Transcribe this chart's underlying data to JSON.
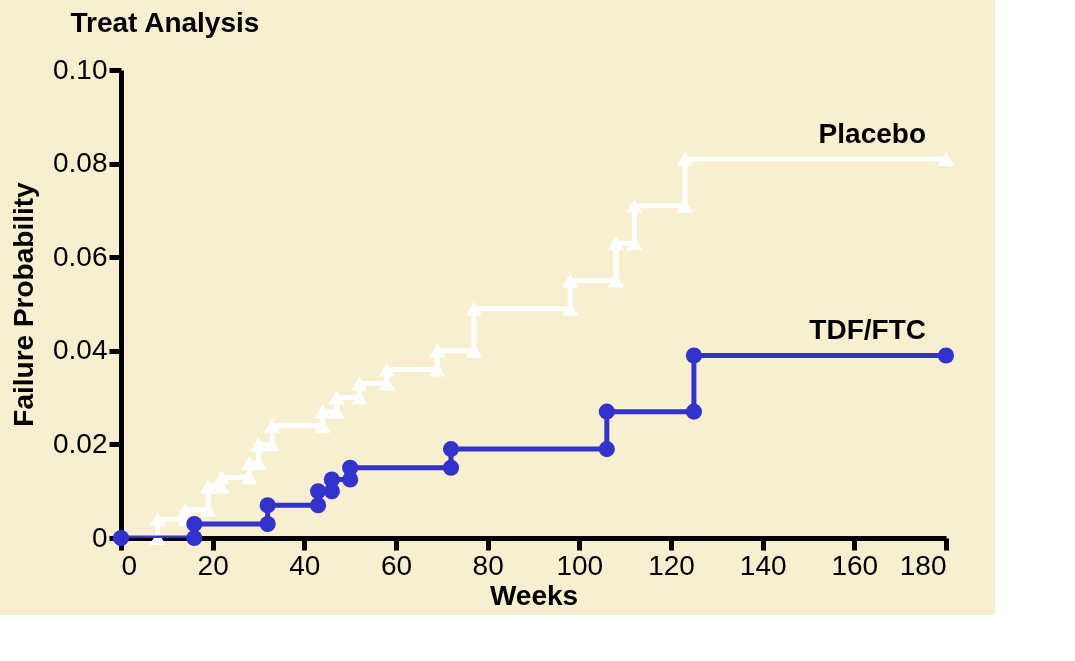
{
  "chart_data": {
    "type": "line",
    "title": "Treat Analysis",
    "xlabel": "Weeks",
    "ylabel": "Failure Probability",
    "xlim": [
      0,
      180
    ],
    "xticks": [
      0,
      20,
      40,
      60,
      80,
      100,
      120,
      140,
      160,
      180
    ],
    "ylim": [
      0,
      0.1
    ],
    "yticks": [
      0,
      0.02,
      0.04,
      0.06,
      0.08,
      {
        "value": 0.1,
        "label": "0.10"
      }
    ],
    "grid": false,
    "legend": false,
    "line_style": "solid",
    "series": [
      {
        "name": "Placebo",
        "color": "#ffffff",
        "marker": "triangle",
        "x": [
          0,
          8,
          8,
          14,
          14,
          19,
          19,
          22,
          22,
          28,
          28,
          30,
          30,
          33,
          33,
          44,
          44,
          47,
          47,
          52,
          52,
          58,
          58,
          69,
          69,
          77,
          77,
          98,
          98,
          108,
          108,
          112,
          112,
          123,
          123,
          180
        ],
        "values": [
          0,
          0,
          0.004,
          0.004,
          0.006,
          0.006,
          0.011,
          0.011,
          0.013,
          0.013,
          0.016,
          0.016,
          0.02,
          0.02,
          0.024,
          0.024,
          0.027,
          0.027,
          0.03,
          0.03,
          0.033,
          0.033,
          0.036,
          0.036,
          0.04,
          0.04,
          0.049,
          0.049,
          0.055,
          0.055,
          0.063,
          0.063,
          0.071,
          0.071,
          0.081,
          0.081
        ]
      },
      {
        "name": "TDF/FTC",
        "color": "#3333cc",
        "marker": "circle",
        "x": [
          0,
          16,
          16,
          32,
          32,
          43,
          43,
          46,
          46,
          50,
          50,
          72,
          72,
          106,
          106,
          125,
          125,
          180
        ],
        "values": [
          0,
          0,
          0.003,
          0.003,
          0.007,
          0.007,
          0.01,
          0.01,
          0.0125,
          0.0125,
          0.015,
          0.015,
          0.019,
          0.019,
          0.027,
          0.027,
          0.039,
          0.039
        ]
      }
    ]
  }
}
